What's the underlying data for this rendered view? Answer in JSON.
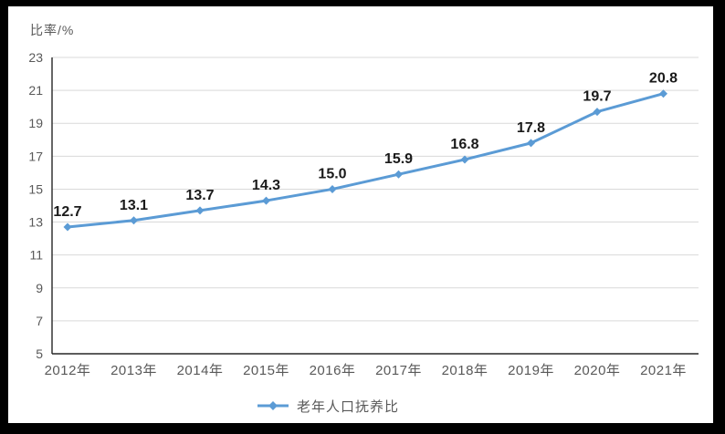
{
  "y_axis_title": "比率/%",
  "chart_data": {
    "type": "line",
    "title": "",
    "xlabel": "",
    "ylabel": "比率/%",
    "categories": [
      "2012年",
      "2013年",
      "2014年",
      "2015年",
      "2016年",
      "2017年",
      "2018年",
      "2019年",
      "2020年",
      "2021年"
    ],
    "series": [
      {
        "name": "老年人口抚养比",
        "values": [
          12.7,
          13.1,
          13.7,
          14.3,
          15.0,
          15.9,
          16.8,
          17.8,
          19.7,
          20.8
        ],
        "labels": [
          "12.7",
          "13.1",
          "13.7",
          "14.3",
          "15.0",
          "15.9",
          "16.8",
          "17.8",
          "19.7",
          "20.8"
        ]
      }
    ],
    "ylim": [
      5,
      23
    ],
    "yticks": [
      5,
      7,
      9,
      11,
      13,
      15,
      17,
      19,
      21,
      23
    ],
    "grid": true,
    "legend_position": "bottom",
    "marker": "diamond",
    "colors": {
      "line": "#5b9bd5",
      "marker": "#5b9bd5",
      "data_label": "#1a1a1a",
      "axis_label": "#595959",
      "gridline": "#d9d9d9",
      "axis_line": "#262626",
      "background": "#ffffff",
      "frame": "#000000"
    }
  }
}
